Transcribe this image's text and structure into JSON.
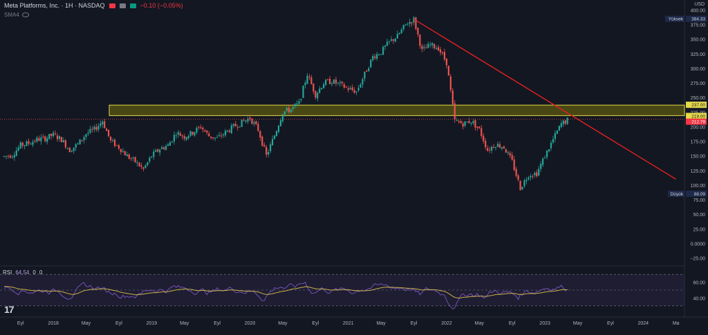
{
  "header": {
    "title": "Meta Platforms, Inc. · 1H · NASDAQ",
    "change": "−0.10 (−0.05%)",
    "indicator": "SMA4"
  },
  "colors": {
    "background": "#131722",
    "up": "#26a69a",
    "down": "#ef5350",
    "trendline": "#e02020",
    "zone_fill": "#5c5a12",
    "zone_border": "#e5d94a",
    "rsi_line": "#7e57c2",
    "rsi_ma": "#c9b24a",
    "price_line": "#f0a030"
  },
  "chart_data": [
    {
      "type": "candlestick",
      "currency": "USD",
      "yticks": [
        "400.00",
        "375.00",
        "350.00",
        "325.00",
        "300.00",
        "275.00",
        "250.00",
        "225.00",
        "200.00",
        "175.00",
        "150.00",
        "125.00",
        "100.00",
        "75.00",
        "50.00",
        "25.00",
        "0.0000",
        "−25.00"
      ],
      "ylim": [
        -35,
        410
      ],
      "xticks": [
        "Eyl",
        "2018",
        "May",
        "Eyl",
        "2019",
        "May",
        "Eyl",
        "2020",
        "May",
        "Eyl",
        "2021",
        "May",
        "Eyl",
        "2022",
        "May",
        "Eyl",
        "2023",
        "May",
        "Eyl",
        "2024",
        "Ma"
      ],
      "series_close_path": [
        [
          "2017-07",
          149
        ],
        [
          "2017-08",
          152
        ],
        [
          "2017-09",
          168
        ],
        [
          "2017-10",
          172
        ],
        [
          "2017-11",
          178
        ],
        [
          "2017-12",
          180
        ],
        [
          "2018-01",
          186
        ],
        [
          "2018-02",
          178
        ],
        [
          "2018-03",
          160
        ],
        [
          "2018-04",
          170
        ],
        [
          "2018-05",
          188
        ],
        [
          "2018-06",
          195
        ],
        [
          "2018-07",
          210
        ],
        [
          "2018-08",
          175
        ],
        [
          "2018-09",
          165
        ],
        [
          "2018-10",
          150
        ],
        [
          "2018-11",
          140
        ],
        [
          "2018-12",
          127
        ],
        [
          "2019-01",
          150
        ],
        [
          "2019-02",
          162
        ],
        [
          "2019-03",
          168
        ],
        [
          "2019-04",
          190
        ],
        [
          "2019-05",
          183
        ],
        [
          "2019-06",
          190
        ],
        [
          "2019-07",
          200
        ],
        [
          "2019-08",
          184
        ],
        [
          "2019-09",
          180
        ],
        [
          "2019-10",
          190
        ],
        [
          "2019-11",
          200
        ],
        [
          "2019-12",
          207
        ],
        [
          "2020-01",
          215
        ],
        [
          "2020-02",
          195
        ],
        [
          "2020-03",
          150
        ],
        [
          "2020-04",
          185
        ],
        [
          "2020-05",
          225
        ],
        [
          "2020-06",
          230
        ],
        [
          "2020-07",
          240
        ],
        [
          "2020-08",
          290
        ],
        [
          "2020-09",
          255
        ],
        [
          "2020-10",
          275
        ],
        [
          "2020-11",
          278
        ],
        [
          "2020-12",
          272
        ],
        [
          "2021-01",
          265
        ],
        [
          "2021-02",
          260
        ],
        [
          "2021-03",
          290
        ],
        [
          "2021-04",
          320
        ],
        [
          "2021-05",
          328
        ],
        [
          "2021-06",
          345
        ],
        [
          "2021-07",
          355
        ],
        [
          "2021-08",
          375
        ],
        [
          "2021-09",
          384
        ],
        [
          "2021-10",
          330
        ],
        [
          "2021-11",
          340
        ],
        [
          "2021-12",
          335
        ],
        [
          "2022-01",
          310
        ],
        [
          "2022-02",
          210
        ],
        [
          "2022-03",
          205
        ],
        [
          "2022-04",
          210
        ],
        [
          "2022-05",
          195
        ],
        [
          "2022-06",
          160
        ],
        [
          "2022-07",
          170
        ],
        [
          "2022-08",
          165
        ],
        [
          "2022-09",
          140
        ],
        [
          "2022-10",
          95
        ],
        [
          "2022-11",
          118
        ],
        [
          "2022-12",
          120
        ],
        [
          "2023-01",
          150
        ],
        [
          "2023-02",
          178
        ],
        [
          "2023-03",
          205
        ],
        [
          "2023-04",
          213
        ]
      ],
      "horizontal_zone": {
        "from": 219.0,
        "to": 237.0
      },
      "current_price": 212.79,
      "high": {
        "label": "Yüksek",
        "value": "384.33"
      },
      "low": {
        "label": "Düşük",
        "value": "88.09"
      },
      "price_labels": [
        "237.00",
        "219.00",
        "212.79"
      ],
      "trendline": {
        "from": [
          "2021-09",
          384.33
        ],
        "to": [
          "2024-05",
          110
        ]
      }
    },
    {
      "type": "line",
      "title": "RSI",
      "values_label": "64.54",
      "extra_labels": [
        "0",
        "0"
      ],
      "yticks": [
        "60.00",
        "40.00"
      ],
      "levels": [
        70,
        50,
        30
      ],
      "ylim": [
        22,
        78
      ]
    }
  ]
}
